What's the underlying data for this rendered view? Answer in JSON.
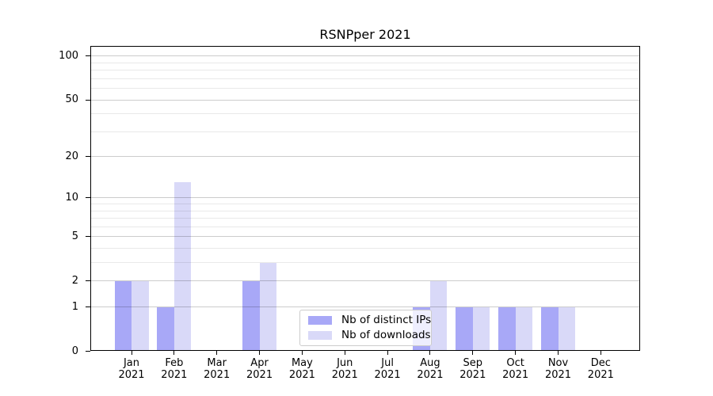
{
  "chart_data": {
    "type": "bar",
    "title": "RSNPper 2021",
    "x_months": [
      "Jan",
      "Feb",
      "Mar",
      "Apr",
      "May",
      "Jun",
      "Jul",
      "Aug",
      "Sep",
      "Oct",
      "Nov",
      "Dec"
    ],
    "x_year": "2021",
    "series": [
      {
        "key": "distinct-ips",
        "name": "Nb of distinct IPs",
        "color": "#a8a8f7",
        "values": [
          2,
          1,
          0,
          2,
          0,
          0,
          0,
          1,
          1,
          1,
          1,
          0
        ]
      },
      {
        "key": "downloads",
        "name": "Nb of downloads",
        "color": "#d9d9f8",
        "values": [
          2,
          13,
          0,
          3,
          0,
          0,
          0,
          2,
          1,
          1,
          1,
          0
        ]
      }
    ],
    "y_scale": "log1p",
    "y_major_ticks": [
      0,
      1,
      2,
      5,
      10,
      20,
      50,
      100
    ],
    "y_minor_ticks": [
      3,
      4,
      6,
      7,
      8,
      9,
      30,
      40,
      60,
      70,
      80,
      90
    ],
    "ylim": [
      0,
      115
    ],
    "xlabel": "",
    "ylabel": "",
    "grid": "both-horizontal",
    "legend": {
      "position": "lower-center"
    },
    "colors": {
      "background": "#ffffff",
      "text": "#000000",
      "axis": "#000000",
      "grid_major": "rgba(0,0,0,0.20)",
      "grid_minor": "rgba(0,0,0,0.085)",
      "legend_border": "#cccccc"
    }
  }
}
